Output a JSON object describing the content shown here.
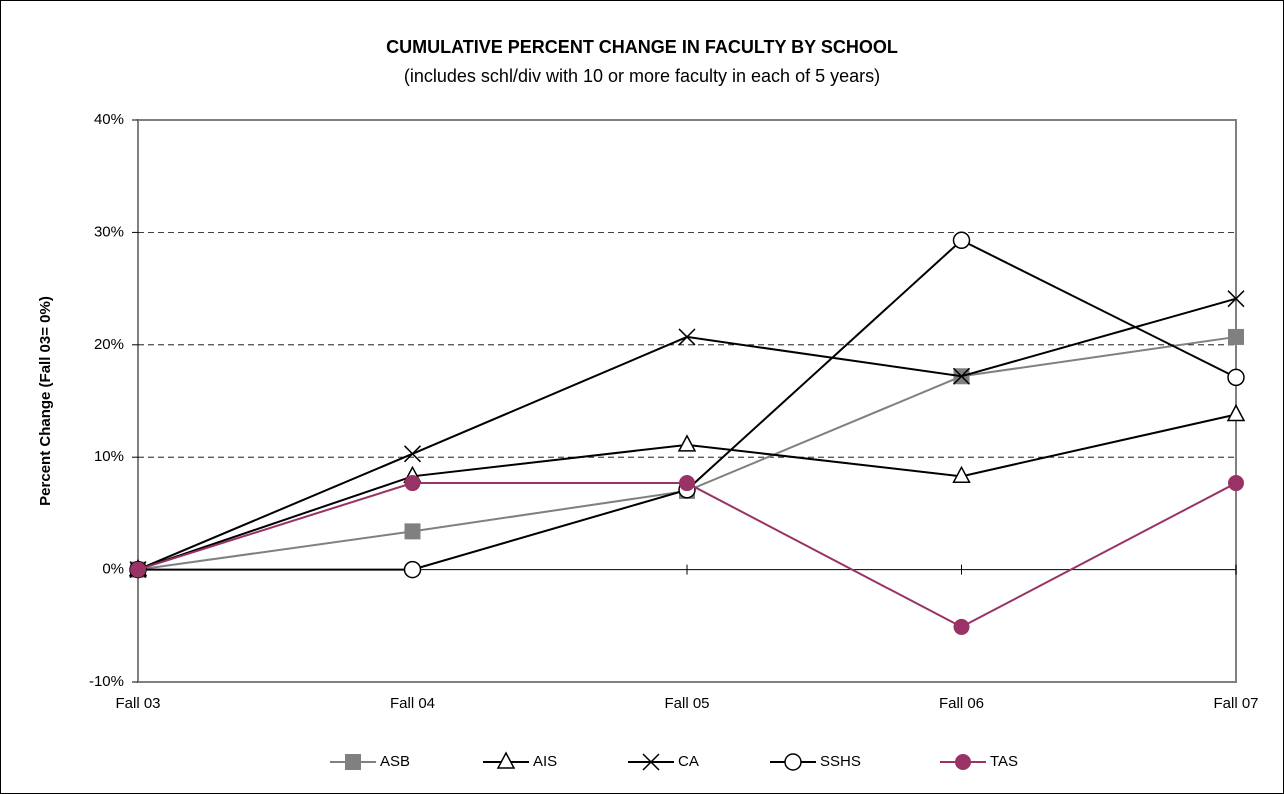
{
  "chart_data": {
    "type": "line",
    "title": "CUMULATIVE PERCENT CHANGE IN FACULTY BY SCHOOL",
    "subtitle": "(includes schl/div with 10 or more faculty in each of 5 years)",
    "y_label": "Percent Change (Fall 03= 0%)",
    "categories": [
      "Fall 03",
      "Fall 04",
      "Fall 05",
      "Fall 06",
      "Fall 07"
    ],
    "series": [
      {
        "name": "ASB",
        "color": "#808080",
        "marker": "square",
        "values": [
          0,
          3.4,
          7.0,
          17.2,
          20.7
        ]
      },
      {
        "name": "AIS",
        "color": "#000000",
        "marker": "triangle",
        "values": [
          0,
          8.3,
          11.1,
          8.3,
          13.8
        ]
      },
      {
        "name": "CA",
        "color": "#000000",
        "marker": "x",
        "values": [
          0,
          10.3,
          20.7,
          17.2,
          24.1
        ]
      },
      {
        "name": "SSHS",
        "color": "#000000",
        "marker": "circle",
        "values": [
          0,
          0,
          7.1,
          29.3,
          17.1
        ]
      },
      {
        "name": "TAS",
        "color": "#993366",
        "marker": "filled-circle",
        "values": [
          0,
          7.7,
          7.7,
          -5.1,
          7.7
        ]
      }
    ],
    "ylim": [
      -10,
      40
    ],
    "yticks": [
      {
        "value": -10,
        "label": "-10%"
      },
      {
        "value": 0,
        "label": "0%"
      },
      {
        "value": 10,
        "label": "10%"
      },
      {
        "value": 20,
        "label": "20%"
      },
      {
        "value": 30,
        "label": "30%"
      },
      {
        "value": 40,
        "label": "40%"
      }
    ],
    "grid": true,
    "legend": "bottom"
  }
}
